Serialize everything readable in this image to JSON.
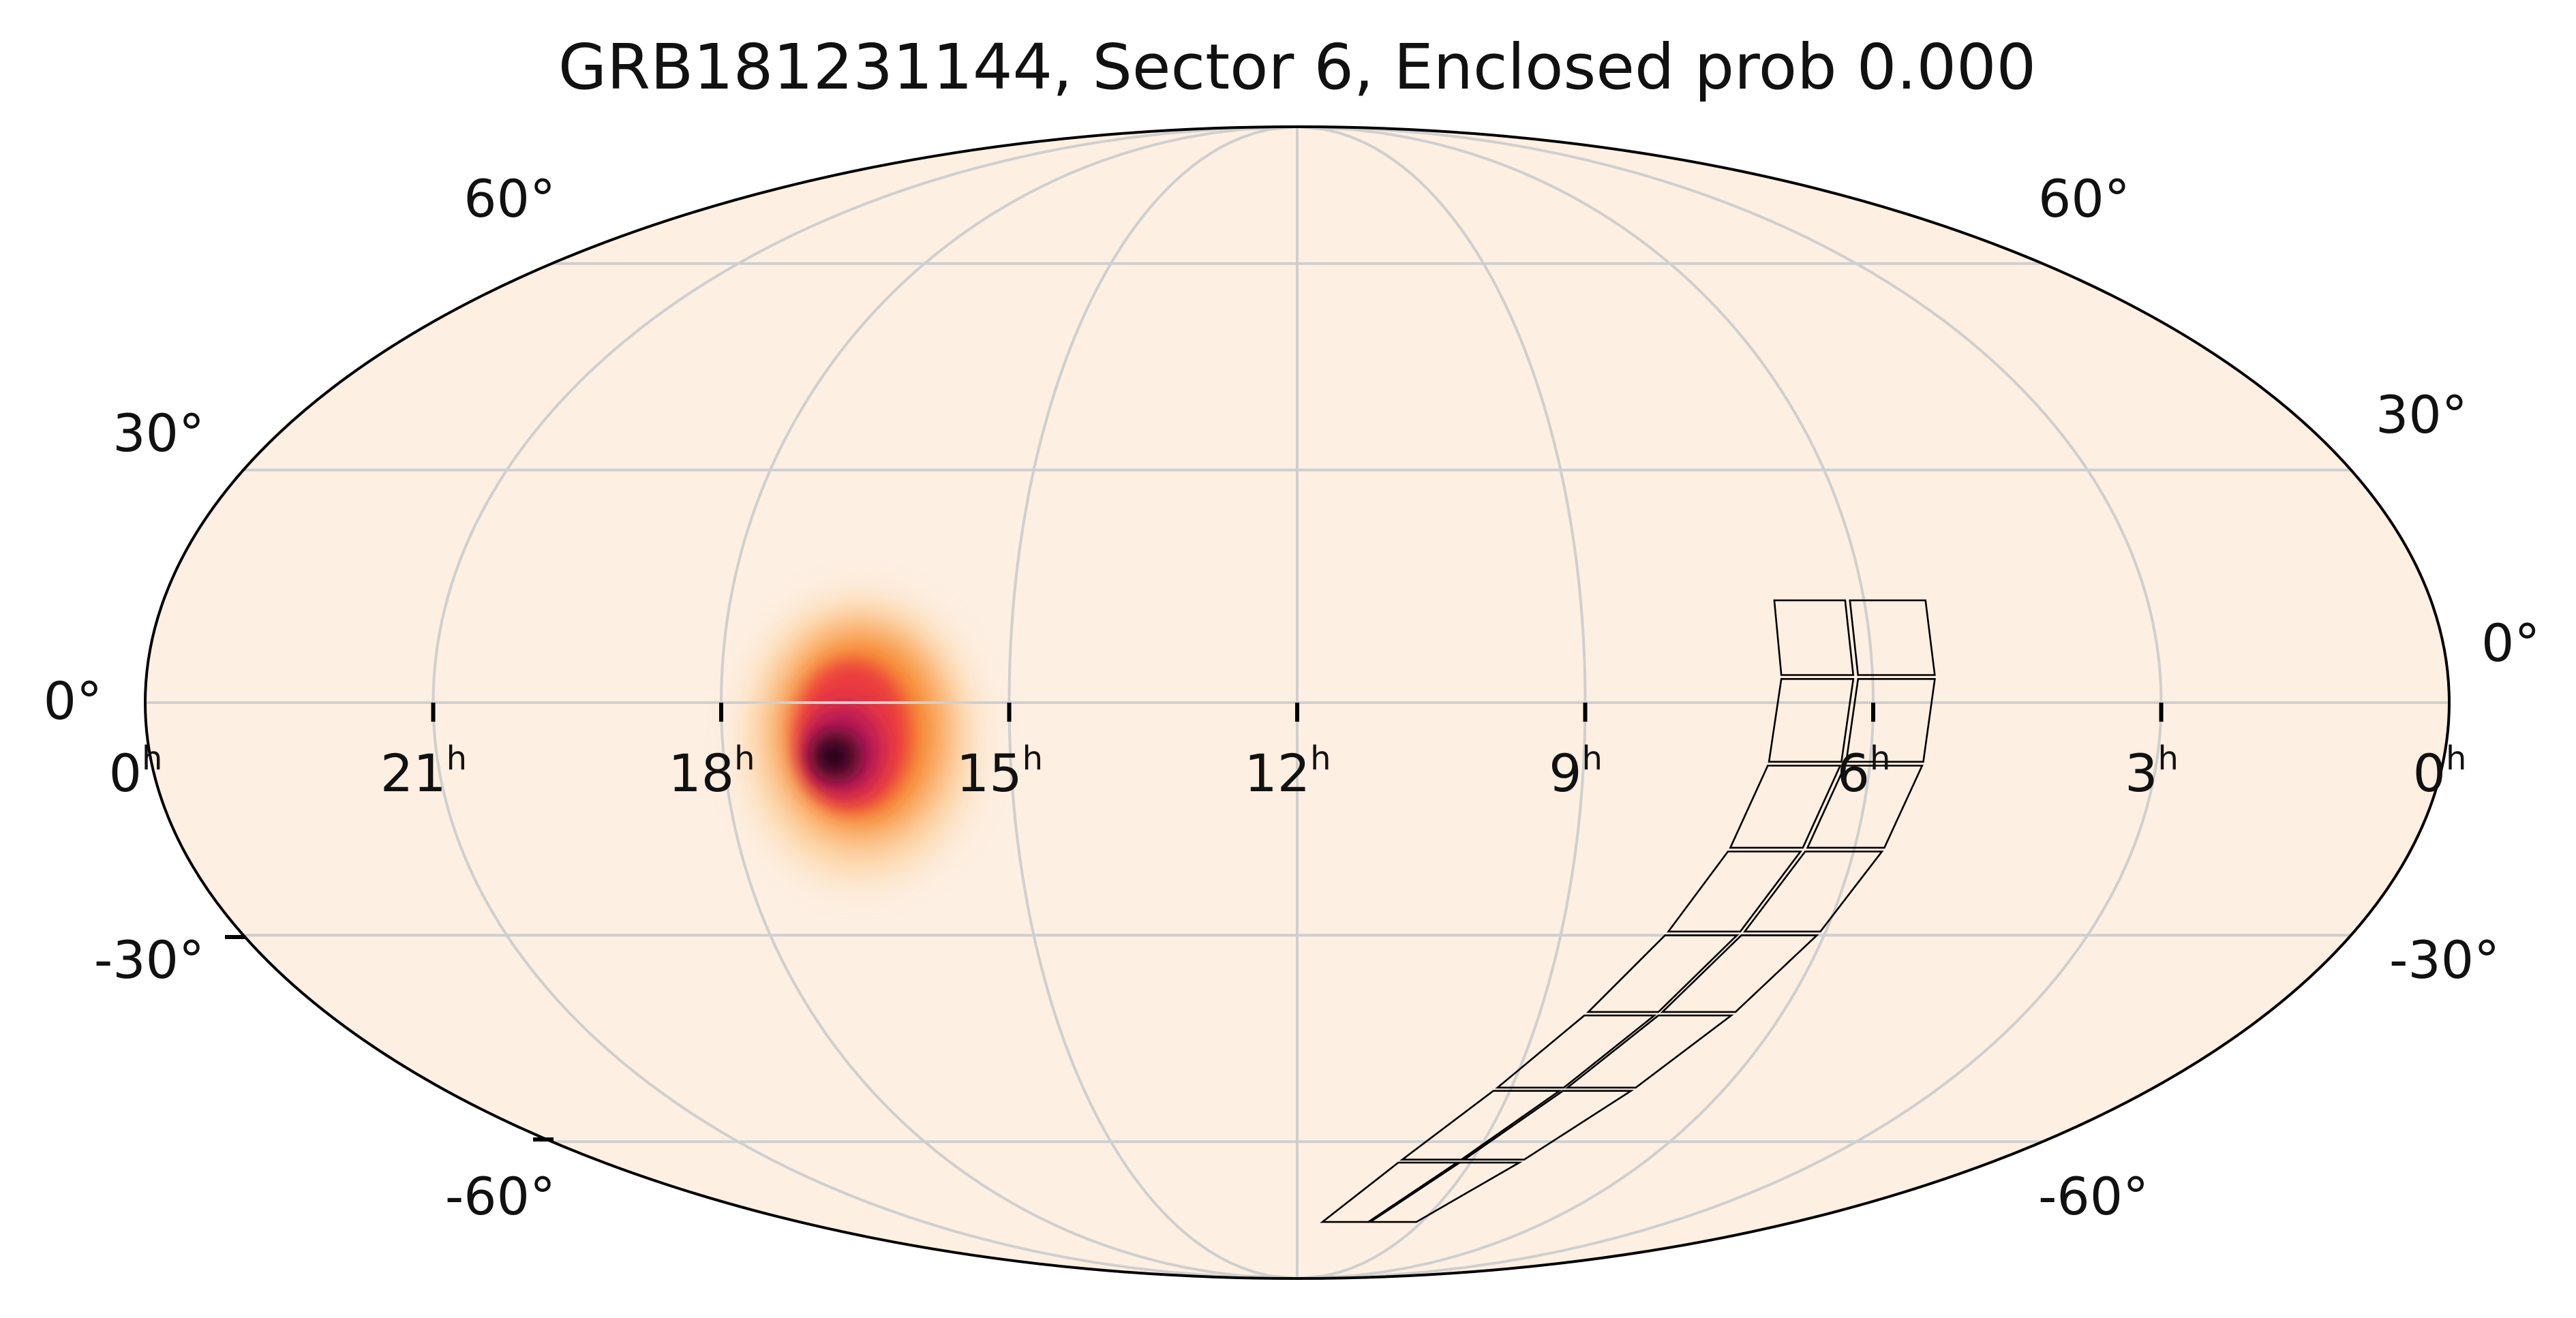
{
  "title": "GRB181231144, Sector 6, Enclosed prob 0.000",
  "colors": {
    "background": "#fdefe2",
    "outline": "#000000",
    "grid": "#cfcfcf",
    "heat": [
      "#fdefe2",
      "#fcc27a",
      "#f6862c",
      "#ea3a3f",
      "#c01b56",
      "#6e0d3a",
      "#1c0409"
    ]
  },
  "map": {
    "projection": "mollweide",
    "ra_tick_labels": [
      {
        "label": "0",
        "unit": "h"
      },
      {
        "label": "21",
        "unit": "h"
      },
      {
        "label": "18",
        "unit": "h"
      },
      {
        "label": "15",
        "unit": "h"
      },
      {
        "label": "12",
        "unit": "h"
      },
      {
        "label": "9",
        "unit": "h"
      },
      {
        "label": "6",
        "unit": "h"
      },
      {
        "label": "3",
        "unit": "h"
      },
      {
        "label": "0",
        "unit": "h"
      }
    ],
    "dec_labels_left": [
      "60°",
      "30°",
      "0°",
      "-30°",
      "-60°"
    ],
    "dec_labels_right": [
      "60°",
      "30°",
      "0°",
      "-30°",
      "-60°"
    ]
  },
  "probability_peak": {
    "ra_hours": 16.9,
    "dec_deg": -3
  },
  "sector_footprint": {
    "description_name": "TESS sector 6 CCD footprint"
  }
}
